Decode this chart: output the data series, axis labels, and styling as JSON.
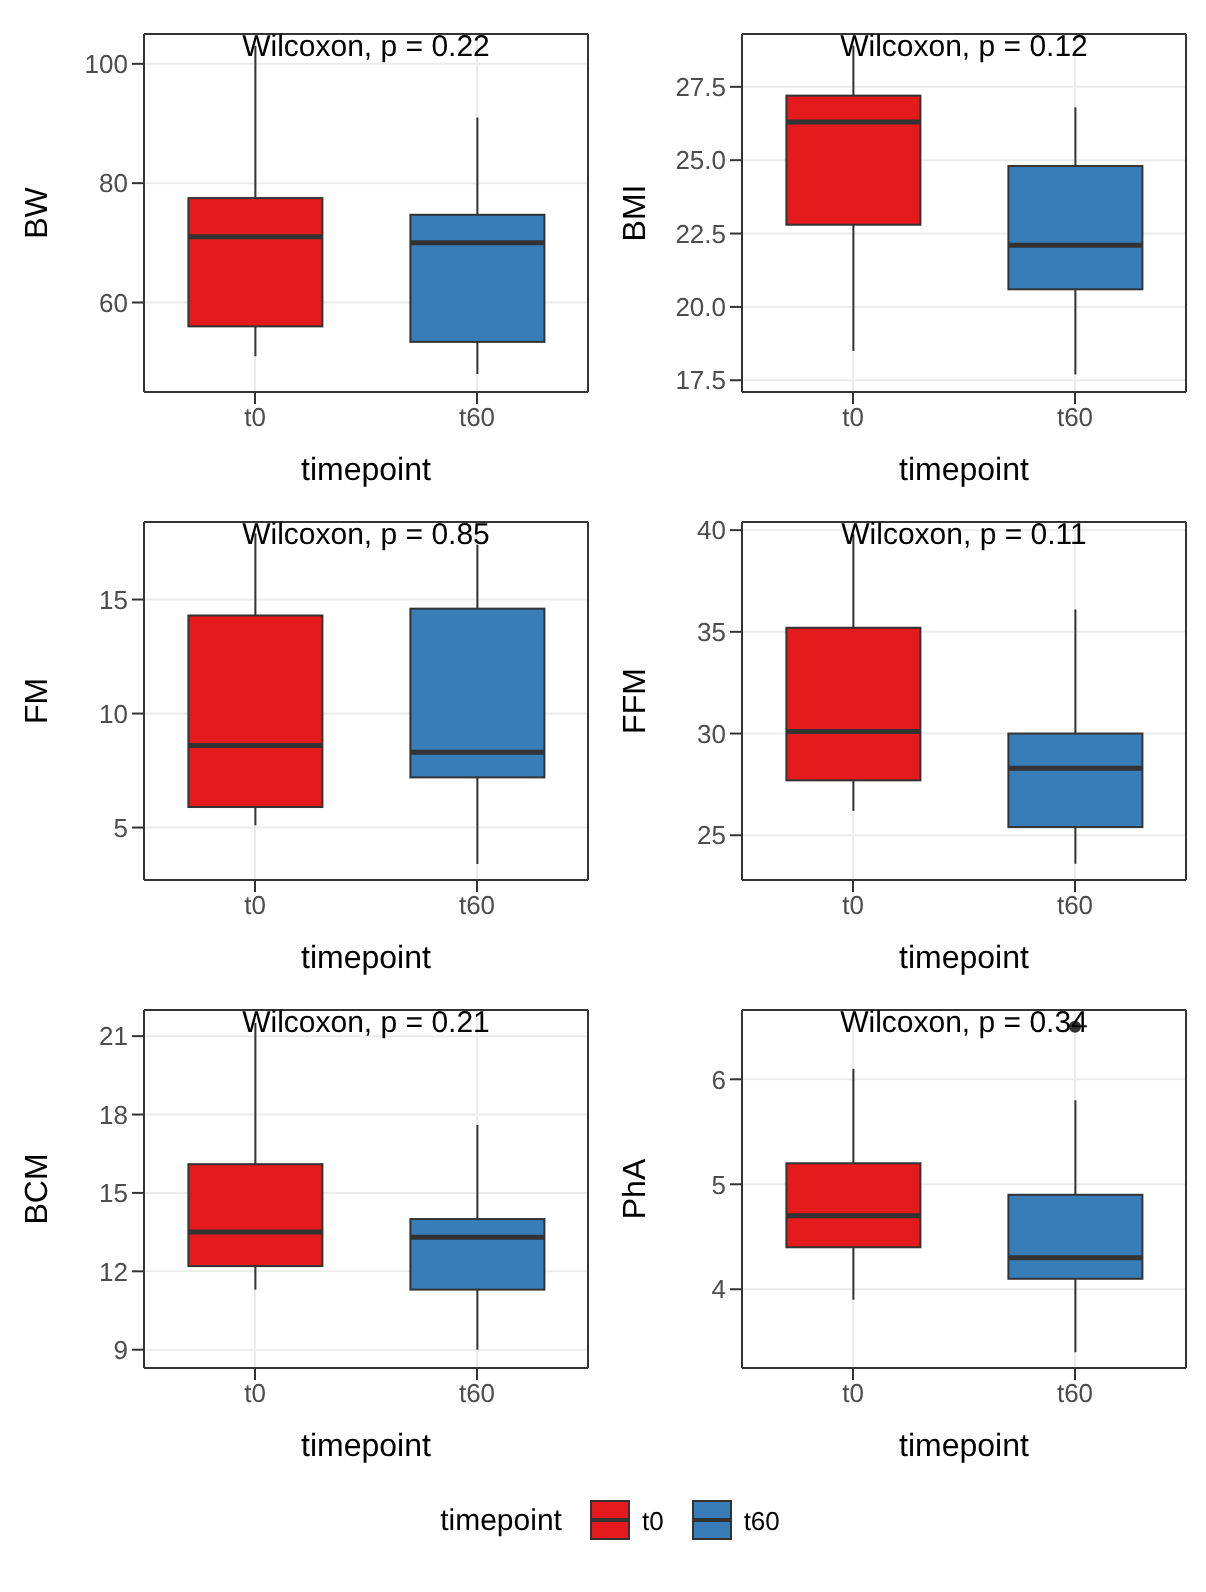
{
  "chart_data": [
    {
      "type": "box",
      "annotations": [
        "Wilcoxon, p = 0.22"
      ],
      "xlabel": "timepoint",
      "ylabel": "BW",
      "categories": [
        "t0",
        "t60"
      ],
      "ylim": [
        45,
        105
      ],
      "yticks": [
        60,
        80,
        100
      ],
      "grid": true,
      "series": [
        {
          "color": "#e41a1c",
          "boxes": [
            {
              "low": 51,
              "q1": 56,
              "median": 71,
              "q3": 77.5,
              "high": 103
            },
            null
          ]
        },
        {
          "color": "#377eb8",
          "boxes": [
            null,
            {
              "low": 48,
              "q1": 53.4,
              "median": 70,
              "q3": 74.7,
              "high": 91
            }
          ]
        }
      ]
    },
    {
      "type": "box",
      "annotations": [
        "Wilcoxon, p = 0.12"
      ],
      "xlabel": "timepoint",
      "ylabel": "BMI",
      "categories": [
        "t0",
        "t60"
      ],
      "ylim": [
        17.1,
        29.3
      ],
      "yticks": [
        {
          "value": 17.5,
          "label": "17.5"
        },
        {
          "value": 20,
          "label": "20.0"
        },
        {
          "value": 22.5,
          "label": "22.5"
        },
        {
          "value": 25,
          "label": "25.0"
        },
        {
          "value": 27.5,
          "label": "27.5"
        }
      ],
      "grid": true,
      "series": [
        {
          "color": "#e41a1c",
          "boxes": [
            {
              "low": 18.5,
              "q1": 22.8,
              "median": 26.3,
              "q3": 27.2,
              "high": 28.9
            },
            null
          ]
        },
        {
          "color": "#377eb8",
          "boxes": [
            null,
            {
              "low": 17.7,
              "q1": 20.6,
              "median": 22.1,
              "q3": 24.8,
              "high": 26.8
            }
          ]
        }
      ]
    },
    {
      "type": "box",
      "annotations": [
        "Wilcoxon, p = 0.85"
      ],
      "xlabel": "timepoint",
      "ylabel": "FM",
      "categories": [
        "t0",
        "t60"
      ],
      "ylim": [
        2.7,
        18.4
      ],
      "yticks": [
        5,
        10,
        15
      ],
      "grid": true,
      "series": [
        {
          "color": "#e41a1c",
          "boxes": [
            {
              "low": 5.1,
              "q1": 5.9,
              "median": 8.6,
              "q3": 14.3,
              "high": 17.9
            },
            null
          ]
        },
        {
          "color": "#377eb8",
          "boxes": [
            null,
            {
              "low": 3.4,
              "q1": 7.2,
              "median": 8.3,
              "q3": 14.6,
              "high": 17.4
            }
          ]
        }
      ]
    },
    {
      "type": "box",
      "annotations": [
        "Wilcoxon, p = 0.11"
      ],
      "xlabel": "timepoint",
      "ylabel": "FFM",
      "categories": [
        "t0",
        "t60"
      ],
      "ylim": [
        22.8,
        40.4
      ],
      "yticks": [
        25,
        30,
        35,
        40
      ],
      "grid": true,
      "series": [
        {
          "color": "#e41a1c",
          "boxes": [
            {
              "low": 26.2,
              "q1": 27.7,
              "median": 30.1,
              "q3": 35.2,
              "high": 39.8
            },
            null
          ]
        },
        {
          "color": "#377eb8",
          "boxes": [
            null,
            {
              "low": 23.6,
              "q1": 25.4,
              "median": 28.3,
              "q3": 30,
              "high": 36.1
            }
          ]
        }
      ]
    },
    {
      "type": "box",
      "annotations": [
        "Wilcoxon, p = 0.21"
      ],
      "xlabel": "timepoint",
      "ylabel": "BCM",
      "categories": [
        "t0",
        "t60"
      ],
      "ylim": [
        8.3,
        22
      ],
      "yticks": [
        9,
        12,
        15,
        18,
        21
      ],
      "grid": true,
      "series": [
        {
          "color": "#e41a1c",
          "boxes": [
            {
              "low": 11.3,
              "q1": 12.2,
              "median": 13.5,
              "q3": 16.1,
              "high": 21.5
            },
            null
          ]
        },
        {
          "color": "#377eb8",
          "boxes": [
            null,
            {
              "low": 9,
              "q1": 11.3,
              "median": 13.3,
              "q3": 14,
              "high": 17.6
            }
          ]
        }
      ]
    },
    {
      "type": "box",
      "annotations": [
        "Wilcoxon, p = 0.34"
      ],
      "xlabel": "timepoint",
      "ylabel": "PhA",
      "categories": [
        "t0",
        "t60"
      ],
      "ylim": [
        3.25,
        6.66
      ],
      "yticks": [
        4,
        5,
        6
      ],
      "grid": true,
      "legend": "bottom",
      "legend_title": "timepoint",
      "series": [
        {
          "name": "t0",
          "color": "#e41a1c",
          "boxes": [
            {
              "low": 3.9,
              "q1": 4.4,
              "median": 4.7,
              "q3": 5.2,
              "high": 6.1
            },
            null
          ]
        },
        {
          "name": "t60",
          "color": "#377eb8",
          "boxes": [
            null,
            {
              "low": 3.4,
              "q1": 4.1,
              "median": 4.3,
              "q3": 4.9,
              "high": 5.8,
              "outliers": [
                6.5
              ]
            }
          ]
        }
      ]
    }
  ]
}
